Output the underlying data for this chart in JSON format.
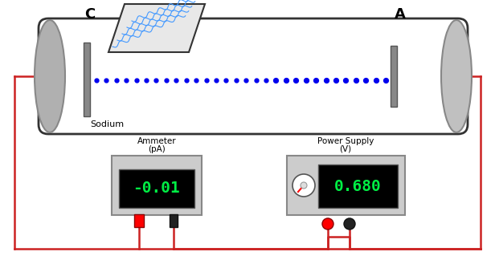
{
  "bg_color": "#ffffff",
  "tube_bg": "#ffffff",
  "tube_outline": "#333333",
  "electrode_color": "#aaaaaa",
  "cathode_label": "C",
  "anode_label": "A",
  "sodium_label": "Sodium",
  "dots_color": "#0000ee",
  "light_color": "#4499ff",
  "ammeter_label1": "Ammeter",
  "ammeter_label2": "(pA)",
  "ammeter_value": "-0.01",
  "power_label1": "Power Supply",
  "power_label2": "(V)",
  "power_value": "0.680",
  "display_bg": "#000000",
  "display_green": "#00ee44",
  "wire_color": "#cc2222",
  "device_bg": "#cccccc",
  "title": ""
}
